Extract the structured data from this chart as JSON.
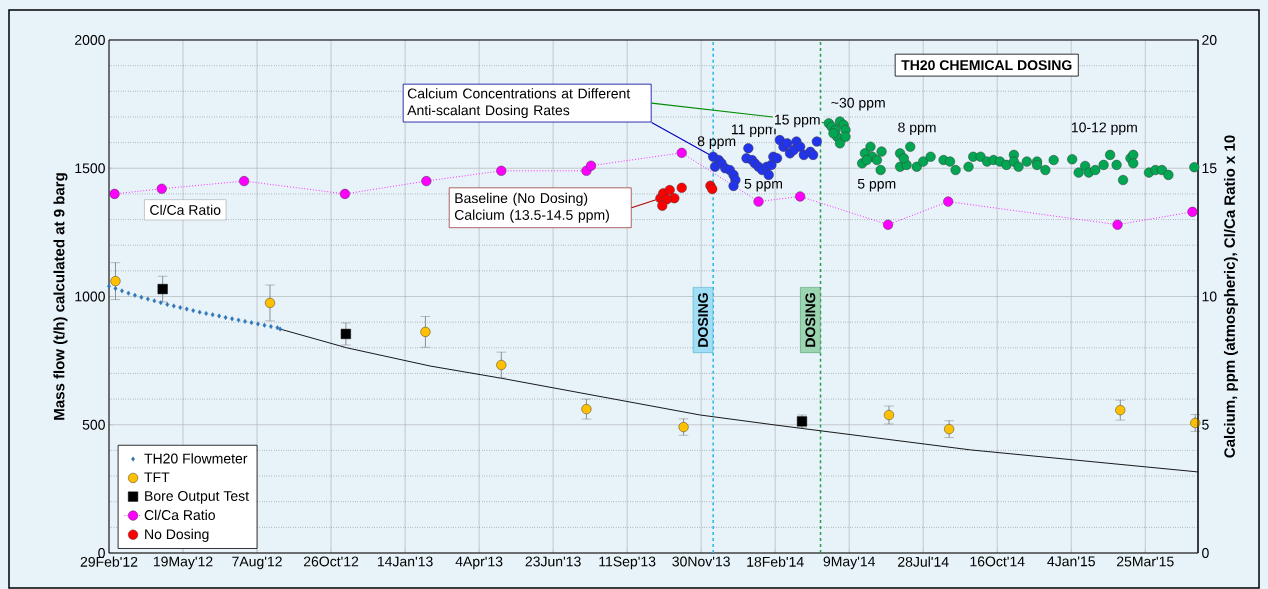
{
  "chart_data": {
    "type": "scatter",
    "xlabel": null,
    "ylabel": "Mass flow (t/h) calculated at 9 barg",
    "y2label": "Calcium, ppm (atmospheric), Cl/Ca Ratio x 10",
    "xlim": [
      "2012-02-29",
      "2015-05-21"
    ],
    "xticks": [
      {
        "value": "2012-02-29",
        "label": "29Feb'12"
      },
      {
        "value": "2012-05-19",
        "label": "19May'12"
      },
      {
        "value": "2012-08-07",
        "label": "7Aug'12"
      },
      {
        "value": "2012-10-26",
        "label": "26Oct'12"
      },
      {
        "value": "2013-01-14",
        "label": "14Jan'13"
      },
      {
        "value": "2013-04-04",
        "label": "4Apr'13"
      },
      {
        "value": "2013-06-23",
        "label": "23Jun'13"
      },
      {
        "value": "2013-09-11",
        "label": "11Sep'13"
      },
      {
        "value": "2013-11-30",
        "label": "30Nov'13"
      },
      {
        "value": "2014-02-18",
        "label": "18Feb'14"
      },
      {
        "value": "2014-05-09",
        "label": "9May'14"
      },
      {
        "value": "2014-07-28",
        "label": "28Jul'14"
      },
      {
        "value": "2014-10-16",
        "label": "16Oct'14"
      },
      {
        "value": "2015-01-04",
        "label": "4Jan'15"
      },
      {
        "value": "2015-03-25",
        "label": "25Mar'15"
      }
    ],
    "ylim": [
      0,
      2000
    ],
    "yticks": [
      0,
      500,
      1000,
      1500,
      2000
    ],
    "y2lim": [
      0,
      20
    ],
    "y2ticks": [
      0,
      5,
      10,
      15,
      20
    ],
    "grid": true,
    "legend": "bottom left",
    "series": [
      {
        "name": "TH20 Flowmeter",
        "marker": "diamond",
        "color": "#2e75b6",
        "x": [
          "2012-02-29",
          "2012-03-07",
          "2012-03-14",
          "2012-03-21",
          "2012-03-28",
          "2012-04-04",
          "2012-04-11",
          "2012-04-18",
          "2012-04-25",
          "2012-05-02",
          "2012-05-09",
          "2012-05-16",
          "2012-05-23",
          "2012-05-30",
          "2012-06-06",
          "2012-06-13",
          "2012-06-20",
          "2012-06-27",
          "2012-07-04",
          "2012-07-11",
          "2012-07-18",
          "2012-07-25",
          "2012-08-01",
          "2012-08-08",
          "2012-08-15",
          "2012-08-22",
          "2012-08-29",
          "2012-09-01"
        ],
        "values": [
          1040,
          1031,
          1022,
          1013,
          1005,
          997,
          990,
          983,
          976,
          969,
          963,
          957,
          951,
          945,
          939,
          934,
          929,
          924,
          918,
          913,
          908,
          903,
          898,
          893,
          888,
          883,
          878,
          873
        ]
      },
      {
        "type": "line",
        "marker": "none",
        "color": "#000000",
        "x": [
          "2012-09-01",
          "2012-11-12",
          "2013-02-10",
          "2013-04-27",
          "2013-11-29",
          "2014-02-18",
          "2014-09-17",
          "2015-05-21"
        ],
        "values": [
          873,
          800,
          729,
          682,
          538,
          499,
          402,
          316
        ]
      },
      {
        "name": "TFT",
        "marker": "circle",
        "color": "#ffc000",
        "x": [
          "2012-03-07",
          "2012-08-21",
          "2013-02-05",
          "2013-04-28",
          "2013-07-29",
          "2013-11-11",
          "2014-06-21",
          "2014-08-25",
          "2015-02-26",
          "2015-05-18"
        ],
        "values": [
          1060,
          975,
          862,
          733,
          561,
          491,
          538,
          483,
          557,
          507
        ],
        "errors": [
          72,
          70,
          60,
          50,
          39,
          32,
          35,
          33,
          39,
          33
        ]
      },
      {
        "name": "Bore Output Test",
        "marker": "square",
        "color": "#000000",
        "x": [
          "2012-04-27",
          "2012-11-11",
          "2014-03-19"
        ],
        "values": [
          1029,
          854,
          513
        ],
        "errors": [
          50,
          43,
          25
        ]
      },
      {
        "marker": "circle",
        "color": "#2233ee",
        "axis": "y2",
        "x": [
          "2013-12-13",
          "2013-12-19",
          "2013-12-15",
          "2013-12-22",
          "2013-12-26",
          "2013-12-31",
          "2014-01-04",
          "2014-01-06",
          "2014-01-04",
          "2014-01-20",
          "2014-01-18",
          "2014-01-24",
          "2014-01-27",
          "2014-01-31",
          "2014-02-04",
          "2014-02-09",
          "2014-02-11",
          "2014-02-14",
          "2014-02-16",
          "2014-02-20",
          "2014-02-23",
          "2014-02-27",
          "2014-03-03",
          "2014-03-06",
          "2014-03-10",
          "2014-03-13",
          "2014-03-17",
          "2014-03-21",
          "2014-03-28",
          "2014-03-31",
          "2014-04-04"
        ],
        "values": [
          15.45,
          15.32,
          15.06,
          15.19,
          15.0,
          14.93,
          14.74,
          14.54,
          14.31,
          15.78,
          15.39,
          15.32,
          15.19,
          15.06,
          14.93,
          15.06,
          14.74,
          15.13,
          15.45,
          15.39,
          16.1,
          15.84,
          15.97,
          15.58,
          15.71,
          16.04,
          15.84,
          15.52,
          15.64,
          15.52,
          16.04
        ]
      },
      {
        "name": "Cl/Ca Ratio",
        "type": "line",
        "marker": "circle",
        "line_style": "dotted",
        "color": "#ff00ff",
        "axis": "y2",
        "x": [
          "2012-03-06",
          "2012-04-26",
          "2012-07-24",
          "2012-11-10",
          "2013-02-06",
          "2013-04-28",
          "2013-07-29",
          "2013-08-03",
          "2013-11-09",
          "2014-01-31",
          "2014-03-17",
          "2014-06-20",
          "2014-08-24",
          "2015-02-23",
          "2015-05-15"
        ],
        "values": [
          14.0,
          14.2,
          14.5,
          14.0,
          14.5,
          14.9,
          14.9,
          15.1,
          15.6,
          13.7,
          13.9,
          12.8,
          13.7,
          12.8,
          13.3
        ]
      },
      {
        "name": "No Dosing",
        "marker": "circle",
        "color": "#ff0000",
        "axis": "y2",
        "x": [
          "2013-10-17",
          "2013-10-20",
          "2013-10-27",
          "2013-11-01",
          "2013-10-24",
          "2013-10-19",
          "2013-11-09",
          "2013-12-10",
          "2013-12-12"
        ],
        "values": [
          13.83,
          14.02,
          14.15,
          13.83,
          13.79,
          13.54,
          14.24,
          14.32,
          14.19
        ]
      },
      {
        "marker": "circle",
        "color": "#00a651",
        "axis": "y2",
        "x": [
          "2014-04-17",
          "2014-04-20",
          "2014-04-24",
          "2014-04-29",
          "2014-05-03",
          "2014-05-05",
          "2014-04-26",
          "2014-04-29",
          "2014-05-05",
          "2014-04-22",
          "2014-05-23",
          "2014-05-26",
          "2014-06-01",
          "2014-06-03",
          "2014-06-08",
          "2014-06-12",
          "2014-06-13",
          "2014-05-28",
          "2014-07-03",
          "2014-07-03",
          "2014-07-10",
          "2014-07-14",
          "2014-07-21",
          "2014-07-28",
          "2014-08-05",
          "2014-07-07",
          "2014-08-19",
          "2014-08-26",
          "2014-09-01",
          "2014-09-15",
          "2014-09-20",
          "2014-09-28",
          "2014-10-05",
          "2014-10-12",
          "2014-10-19",
          "2014-10-26",
          "2014-11-03",
          "2014-11-03",
          "2014-11-08",
          "2014-11-17",
          "2014-11-28",
          "2014-11-28",
          "2014-12-07",
          "2014-12-16",
          "2015-01-05",
          "2015-01-12",
          "2015-01-19",
          "2015-01-23",
          "2015-01-30",
          "2015-02-08",
          "2015-02-15",
          "2015-02-22",
          "2015-03-01",
          "2015-03-09",
          "2015-03-12",
          "2015-03-12",
          "2015-03-29",
          "2015-04-05",
          "2015-04-12",
          "2015-04-19",
          "2015-05-17"
        ],
        "values": [
          16.75,
          16.62,
          16.49,
          16.82,
          16.69,
          16.49,
          16.23,
          15.97,
          16.23,
          16.36,
          15.19,
          15.58,
          15.84,
          15.45,
          15.32,
          14.93,
          15.65,
          15.32,
          15.58,
          15.06,
          15.13,
          15.84,
          15.06,
          15.26,
          15.45,
          15.39,
          15.32,
          15.26,
          14.93,
          15.06,
          15.45,
          15.45,
          15.26,
          15.32,
          15.26,
          15.13,
          15.52,
          15.26,
          15.06,
          15.26,
          15.26,
          15.13,
          14.93,
          15.32,
          15.35,
          14.83,
          15.09,
          14.83,
          14.93,
          15.13,
          15.52,
          15.13,
          14.54,
          15.39,
          15.52,
          15.19,
          14.83,
          14.93,
          14.93,
          14.74,
          15.04
        ]
      }
    ],
    "ref_lines": [
      {
        "axis": "x",
        "value": "2013-12-13",
        "label": "DOSING",
        "color": "#29b6e8",
        "line_style": "dashed"
      },
      {
        "axis": "x",
        "value": "2014-04-08",
        "label": "DOSING",
        "color": "#21a04f",
        "line_style": "dashed"
      }
    ],
    "annotations": [
      "TH20 CHEMICAL DOSING",
      "Calcium Concentrations at Different Anti-scalant Dosing Rates",
      "Baseline (No Dosing) Calcium (13.5-14.5 ppm)",
      "Cl/Ca Ratio",
      "8 ppm",
      "11 ppm",
      "15 ppm",
      "5 ppm",
      "~30 ppm",
      "8 ppm",
      "5 ppm",
      "10-12 ppm"
    ]
  }
}
